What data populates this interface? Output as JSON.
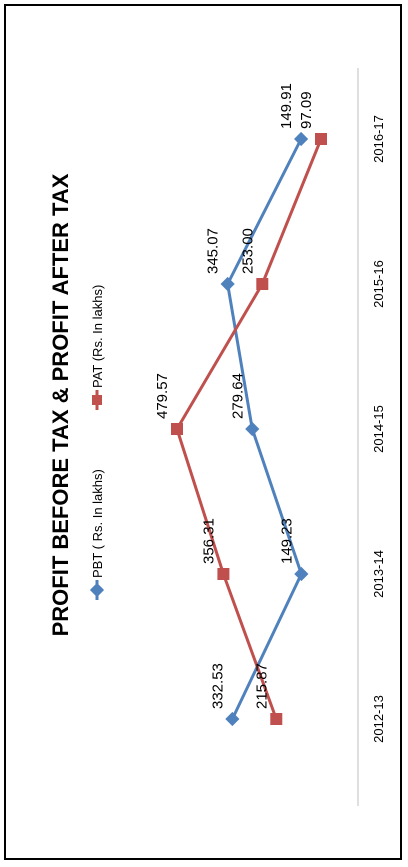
{
  "chart_data": {
    "type": "line",
    "title": "PROFIT BEFORE TAX & PROFIT AFTER TAX",
    "categories": [
      "2012-13",
      "2013-14",
      "2014-15",
      "2015-16",
      "2016-17"
    ],
    "series": [
      {
        "name": "PBT ( Rs. In lakhs)",
        "color": "#4f81bd",
        "marker": "diamond",
        "values": [
          332.53,
          149.23,
          279.64,
          345.07,
          149.91
        ],
        "labels": [
          "332.53",
          "149.23",
          "279.64",
          "345.07",
          "149.91"
        ]
      },
      {
        "name": "PAT (Rs. In lakhs)",
        "color": "#c0504d",
        "marker": "square",
        "values": [
          215.87,
          356.31,
          479.57,
          253.0,
          97.09
        ],
        "labels": [
          "215.87",
          "356.31",
          "479.57",
          "253.00",
          "97.09"
        ]
      }
    ],
    "orientation": "rotated-90-ccw",
    "grid": false,
    "legend_position": "top"
  }
}
